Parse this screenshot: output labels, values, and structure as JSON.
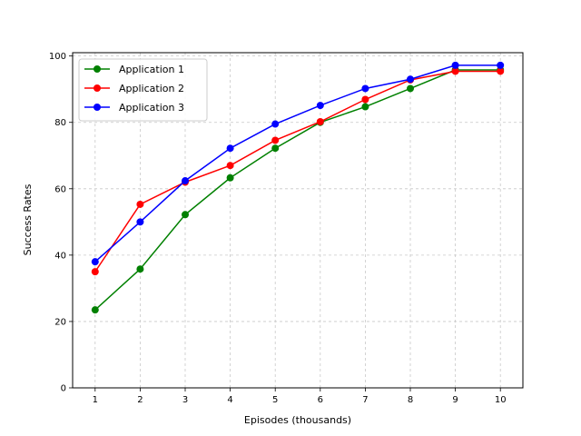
{
  "chart_data": {
    "type": "line",
    "title": "",
    "xlabel": "Episodes (thousands)",
    "ylabel": "Success Rates",
    "x": [
      1,
      2,
      3,
      4,
      5,
      6,
      7,
      8,
      9,
      10
    ],
    "xlim": [
      0.5,
      10.5
    ],
    "ylim": [
      0,
      101
    ],
    "xticks": [
      1,
      2,
      3,
      4,
      5,
      6,
      7,
      8,
      9,
      10
    ],
    "yticks": [
      0,
      20,
      40,
      60,
      80,
      100
    ],
    "grid": true,
    "grid_style": "dashed",
    "legend_position": "top-left",
    "marker": "circle",
    "series": [
      {
        "name": "Application 1",
        "color": "#008000",
        "values": [
          23.5,
          35.8,
          52.2,
          63.3,
          72.2,
          80.0,
          84.7,
          90.2,
          95.8,
          95.8
        ]
      },
      {
        "name": "Application 2",
        "color": "#ff0000",
        "values": [
          35.0,
          55.3,
          62.0,
          67.0,
          74.6,
          80.2,
          86.9,
          92.8,
          95.4,
          95.4
        ]
      },
      {
        "name": "Application 3",
        "color": "#0000ff",
        "values": [
          38.0,
          50.0,
          62.4,
          72.2,
          79.5,
          85.1,
          90.2,
          93.0,
          97.2,
          97.2
        ]
      }
    ]
  }
}
